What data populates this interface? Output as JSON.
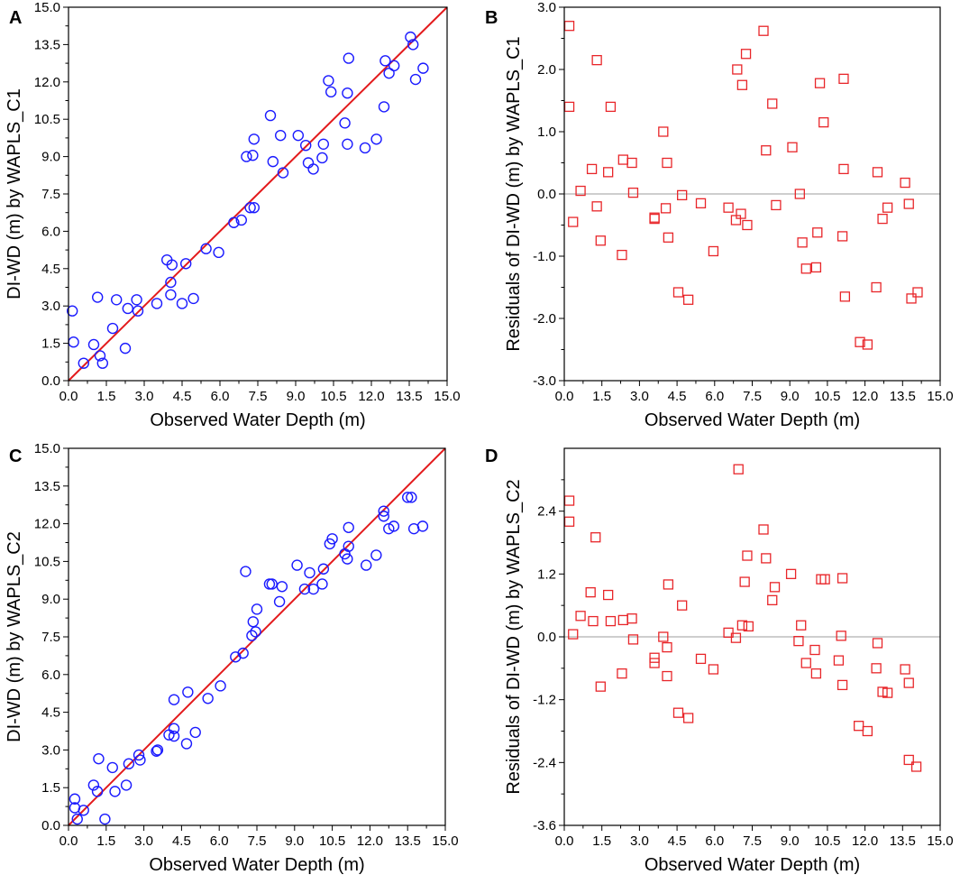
{
  "colors": {
    "scatter": "#1a1aff",
    "residual": "#e8262a",
    "fit_line": "#e31a1c",
    "zero_line": "#b0b0b0",
    "axis": "#000000"
  },
  "chart_data": [
    {
      "type": "scatter",
      "panel": "A",
      "xlabel": "Observed Water Depth (m)",
      "ylabel": "DI-WD (m) by WAPLS_C1",
      "xlim": [
        0,
        15
      ],
      "ylim": [
        0,
        15
      ],
      "xticks": [
        "0.0",
        "1.5",
        "3.0",
        "4.5",
        "6.0",
        "7.5",
        "9.0",
        "10.5",
        "12.0",
        "13.5",
        "15.0"
      ],
      "yticks": [
        "0.0",
        "1.5",
        "3.0",
        "4.5",
        "6.0",
        "7.5",
        "9.0",
        "10.5",
        "12.0",
        "13.5",
        "15.0"
      ],
      "reference_line": [
        [
          0,
          0
        ],
        [
          15,
          15
        ]
      ],
      "marker": "circle",
      "points": [
        [
          0.15,
          2.8
        ],
        [
          0.2,
          1.55
        ],
        [
          0.6,
          0.7
        ],
        [
          1.0,
          1.45
        ],
        [
          1.15,
          3.35
        ],
        [
          1.25,
          1.0
        ],
        [
          1.35,
          0.7
        ],
        [
          1.75,
          2.1
        ],
        [
          1.9,
          3.25
        ],
        [
          2.25,
          1.3
        ],
        [
          2.35,
          2.9
        ],
        [
          2.7,
          3.25
        ],
        [
          2.75,
          2.8
        ],
        [
          3.5,
          3.1
        ],
        [
          3.9,
          4.85
        ],
        [
          4.05,
          3.45
        ],
        [
          4.05,
          3.95
        ],
        [
          4.1,
          4.65
        ],
        [
          4.5,
          3.1
        ],
        [
          4.65,
          4.7
        ],
        [
          4.95,
          3.3
        ],
        [
          5.45,
          5.3
        ],
        [
          5.95,
          5.15
        ],
        [
          6.55,
          6.35
        ],
        [
          6.85,
          6.45
        ],
        [
          7.05,
          9.0
        ],
        [
          7.2,
          6.95
        ],
        [
          7.35,
          6.95
        ],
        [
          7.3,
          9.05
        ],
        [
          7.35,
          9.7
        ],
        [
          8.0,
          10.65
        ],
        [
          8.1,
          8.8
        ],
        [
          8.4,
          9.85
        ],
        [
          8.5,
          8.35
        ],
        [
          9.1,
          9.85
        ],
        [
          9.4,
          9.45
        ],
        [
          9.5,
          8.75
        ],
        [
          9.7,
          8.5
        ],
        [
          10.05,
          8.95
        ],
        [
          10.1,
          9.5
        ],
        [
          10.3,
          12.05
        ],
        [
          10.4,
          11.6
        ],
        [
          10.95,
          10.35
        ],
        [
          11.05,
          9.5
        ],
        [
          11.05,
          11.55
        ],
        [
          11.1,
          12.95
        ],
        [
          11.75,
          9.35
        ],
        [
          12.2,
          9.7
        ],
        [
          12.5,
          11.0
        ],
        [
          12.55,
          12.85
        ],
        [
          12.7,
          12.35
        ],
        [
          12.9,
          12.65
        ],
        [
          13.55,
          13.8
        ],
        [
          13.65,
          13.5
        ],
        [
          13.75,
          12.1
        ],
        [
          14.05,
          12.55
        ]
      ]
    },
    {
      "type": "scatter",
      "panel": "B",
      "xlabel": "Observed Water Depth (m)",
      "ylabel": "Residuals of DI-WD (m) by WAPLS_C1",
      "xlim": [
        0,
        15
      ],
      "ylim": [
        -3,
        3
      ],
      "xticks": [
        "0.0",
        "1.5",
        "3.0",
        "4.5",
        "6.0",
        "7.5",
        "9.0",
        "10.5",
        "12.0",
        "13.5",
        "15.0"
      ],
      "yticks": [
        "-3.0",
        "-2.0",
        "-1.0",
        "0.0",
        "1.0",
        "2.0",
        "3.0"
      ],
      "reference_line": [
        [
          0,
          0
        ],
        [
          15,
          0
        ]
      ],
      "marker": "square",
      "points": [
        [
          0.2,
          2.7
        ],
        [
          0.2,
          1.4
        ],
        [
          0.35,
          -0.45
        ],
        [
          0.65,
          0.05
        ],
        [
          1.1,
          0.4
        ],
        [
          1.3,
          2.15
        ],
        [
          1.3,
          -0.2
        ],
        [
          1.45,
          -0.75
        ],
        [
          1.75,
          0.35
        ],
        [
          1.85,
          1.4
        ],
        [
          2.3,
          -0.98
        ],
        [
          2.35,
          0.55
        ],
        [
          2.7,
          0.5
        ],
        [
          2.75,
          0.02
        ],
        [
          3.6,
          -0.4
        ],
        [
          3.6,
          -0.38
        ],
        [
          3.95,
          1.0
        ],
        [
          4.05,
          -0.23
        ],
        [
          4.1,
          0.5
        ],
        [
          4.15,
          -0.7
        ],
        [
          4.55,
          -1.58
        ],
        [
          4.7,
          -0.02
        ],
        [
          4.95,
          -1.7
        ],
        [
          5.45,
          -0.15
        ],
        [
          5.95,
          -0.92
        ],
        [
          6.55,
          -0.22
        ],
        [
          6.85,
          -0.42
        ],
        [
          6.9,
          2.0
        ],
        [
          7.05,
          -0.32
        ],
        [
          7.1,
          1.75
        ],
        [
          7.25,
          2.25
        ],
        [
          7.3,
          -0.5
        ],
        [
          7.95,
          2.62
        ],
        [
          8.05,
          0.7
        ],
        [
          8.3,
          1.45
        ],
        [
          8.45,
          -0.18
        ],
        [
          9.1,
          0.75
        ],
        [
          9.4,
          0.0
        ],
        [
          9.5,
          -0.78
        ],
        [
          9.65,
          -1.2
        ],
        [
          10.05,
          -1.18
        ],
        [
          10.1,
          -0.62
        ],
        [
          10.2,
          1.78
        ],
        [
          10.35,
          1.15
        ],
        [
          11.1,
          -0.68
        ],
        [
          11.15,
          1.85
        ],
        [
          11.15,
          0.4
        ],
        [
          11.2,
          -1.65
        ],
        [
          11.8,
          -2.38
        ],
        [
          12.1,
          -2.42
        ],
        [
          12.45,
          -1.5
        ],
        [
          12.5,
          0.35
        ],
        [
          12.7,
          -0.4
        ],
        [
          12.9,
          -0.22
        ],
        [
          13.6,
          0.18
        ],
        [
          13.75,
          -0.16
        ],
        [
          13.85,
          -1.68
        ],
        [
          14.1,
          -1.58
        ]
      ]
    },
    {
      "type": "scatter",
      "panel": "C",
      "xlabel": "Observed Water Depth (m)",
      "ylabel": "DI-WD (m) by WAPLS_C2",
      "xlim": [
        0,
        15
      ],
      "ylim": [
        0,
        15
      ],
      "xticks": [
        "0.0",
        "1.5",
        "3.0",
        "4.5",
        "6.0",
        "7.5",
        "9.0",
        "10.5",
        "12.0",
        "13.5",
        "15.0"
      ],
      "yticks": [
        "0.0",
        "1.5",
        "3.0",
        "4.5",
        "6.0",
        "7.5",
        "9.0",
        "10.5",
        "12.0",
        "13.5",
        "15.0"
      ],
      "reference_line": [
        [
          0,
          0
        ],
        [
          15,
          15
        ]
      ],
      "marker": "circle",
      "points": [
        [
          0.25,
          1.05
        ],
        [
          0.25,
          0.7
        ],
        [
          0.35,
          0.25
        ],
        [
          0.6,
          0.6
        ],
        [
          1.0,
          1.6
        ],
        [
          1.15,
          1.35
        ],
        [
          1.2,
          2.65
        ],
        [
          1.45,
          0.25
        ],
        [
          1.75,
          2.3
        ],
        [
          1.85,
          1.35
        ],
        [
          2.3,
          1.6
        ],
        [
          2.4,
          2.45
        ],
        [
          2.8,
          2.8
        ],
        [
          2.85,
          2.6
        ],
        [
          3.5,
          2.95
        ],
        [
          3.55,
          3.0
        ],
        [
          4.0,
          3.6
        ],
        [
          4.2,
          3.85
        ],
        [
          4.2,
          3.55
        ],
        [
          4.2,
          5.0
        ],
        [
          4.7,
          3.25
        ],
        [
          4.75,
          5.3
        ],
        [
          5.05,
          3.7
        ],
        [
          5.55,
          5.05
        ],
        [
          6.05,
          5.55
        ],
        [
          6.65,
          6.7
        ],
        [
          6.95,
          6.85
        ],
        [
          7.05,
          10.1
        ],
        [
          7.3,
          7.55
        ],
        [
          7.35,
          8.1
        ],
        [
          7.45,
          7.7
        ],
        [
          7.5,
          8.6
        ],
        [
          8.0,
          9.6
        ],
        [
          8.1,
          9.6
        ],
        [
          8.4,
          8.9
        ],
        [
          8.5,
          9.5
        ],
        [
          9.1,
          10.35
        ],
        [
          9.4,
          9.4
        ],
        [
          9.6,
          10.05
        ],
        [
          9.75,
          9.4
        ],
        [
          10.1,
          9.6
        ],
        [
          10.15,
          10.2
        ],
        [
          10.4,
          11.2
        ],
        [
          10.5,
          11.4
        ],
        [
          11.0,
          10.8
        ],
        [
          11.1,
          10.6
        ],
        [
          11.15,
          11.85
        ],
        [
          11.15,
          11.1
        ],
        [
          11.85,
          10.35
        ],
        [
          12.25,
          10.75
        ],
        [
          12.55,
          12.3
        ],
        [
          12.55,
          12.5
        ],
        [
          12.75,
          11.8
        ],
        [
          12.95,
          11.9
        ],
        [
          13.5,
          13.05
        ],
        [
          13.65,
          13.05
        ],
        [
          13.75,
          11.8
        ],
        [
          14.1,
          11.9
        ]
      ]
    },
    {
      "type": "scatter",
      "panel": "D",
      "xlabel": "Observed Water Depth (m)",
      "ylabel": "Residuals of DI-WD (m) by WAPLS_C2",
      "xlim": [
        0,
        15
      ],
      "ylim": [
        -3.6,
        3.6
      ],
      "xticks": [
        "0.0",
        "1.5",
        "3.0",
        "4.5",
        "6.0",
        "7.5",
        "9.0",
        "10.5",
        "12.0",
        "13.5",
        "15.0"
      ],
      "yticks": [
        "-3.6",
        "-2.4",
        "-1.2",
        "0.0",
        "1.2",
        "2.4"
      ],
      "reference_line": [
        [
          0,
          0
        ],
        [
          15,
          0
        ]
      ],
      "marker": "square",
      "points": [
        [
          0.2,
          2.6
        ],
        [
          0.2,
          2.2
        ],
        [
          0.35,
          0.05
        ],
        [
          0.65,
          0.4
        ],
        [
          1.05,
          0.85
        ],
        [
          1.15,
          0.3
        ],
        [
          1.25,
          1.9
        ],
        [
          1.45,
          -0.95
        ],
        [
          1.75,
          0.8
        ],
        [
          1.85,
          0.3
        ],
        [
          2.3,
          -0.7
        ],
        [
          2.35,
          0.32
        ],
        [
          2.7,
          0.35
        ],
        [
          2.75,
          -0.05
        ],
        [
          3.6,
          -0.4
        ],
        [
          3.6,
          -0.5
        ],
        [
          3.95,
          0.0
        ],
        [
          4.1,
          -0.2
        ],
        [
          4.1,
          -0.75
        ],
        [
          4.15,
          1.0
        ],
        [
          4.55,
          -1.45
        ],
        [
          4.7,
          0.6
        ],
        [
          4.95,
          -1.55
        ],
        [
          5.45,
          -0.42
        ],
        [
          5.95,
          -0.62
        ],
        [
          6.55,
          0.08
        ],
        [
          6.85,
          -0.02
        ],
        [
          6.95,
          3.2
        ],
        [
          7.1,
          0.22
        ],
        [
          7.2,
          1.05
        ],
        [
          7.3,
          1.55
        ],
        [
          7.35,
          0.2
        ],
        [
          7.95,
          2.05
        ],
        [
          8.05,
          1.5
        ],
        [
          8.3,
          0.7
        ],
        [
          8.4,
          0.95
        ],
        [
          9.05,
          1.2
        ],
        [
          9.35,
          -0.08
        ],
        [
          9.45,
          0.22
        ],
        [
          9.65,
          -0.5
        ],
        [
          10.0,
          -0.25
        ],
        [
          10.05,
          -0.7
        ],
        [
          10.25,
          1.1
        ],
        [
          10.4,
          1.1
        ],
        [
          10.95,
          -0.45
        ],
        [
          11.05,
          0.02
        ],
        [
          11.1,
          -0.92
        ],
        [
          11.1,
          1.12
        ],
        [
          11.75,
          -1.7
        ],
        [
          12.1,
          -1.8
        ],
        [
          12.45,
          -0.6
        ],
        [
          12.5,
          -0.12
        ],
        [
          12.7,
          -1.05
        ],
        [
          12.9,
          -1.07
        ],
        [
          13.6,
          -0.62
        ],
        [
          13.75,
          -0.88
        ],
        [
          13.75,
          -2.35
        ],
        [
          14.05,
          -2.48
        ]
      ]
    }
  ]
}
